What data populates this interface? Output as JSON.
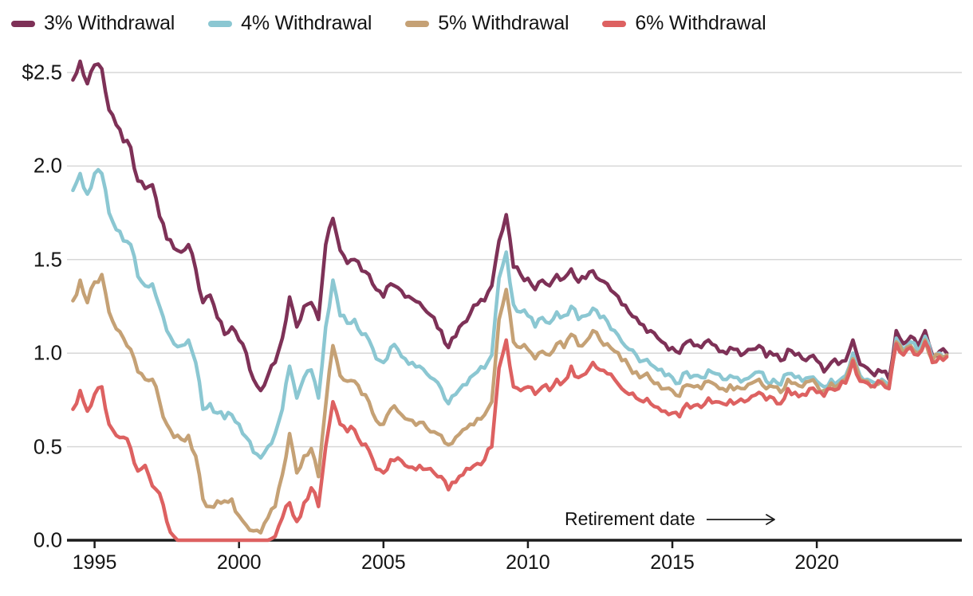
{
  "colors": {
    "background": "#ffffff",
    "grid": "#d7d7d7",
    "axis": "#1c1c1c",
    "text": "#141414"
  },
  "annotation": {
    "text": "Retirement date"
  },
  "chart_data": {
    "type": "line",
    "title": "",
    "xlabel": "Retirement date",
    "ylabel": "",
    "grid": true,
    "legend_position": "top-left",
    "x_range": [
      1994.1,
      2024.8
    ],
    "y_range": [
      0,
      2.5
    ],
    "x_ticks": [
      1995,
      2000,
      2005,
      2010,
      2015,
      2020
    ],
    "x_tick_labels": [
      "1995",
      "2000",
      "2005",
      "2010",
      "2015",
      "2020"
    ],
    "y_ticks": [
      0,
      0.5,
      1.0,
      1.5,
      2.0,
      2.5
    ],
    "y_tick_labels": [
      "0.0",
      "0.5",
      "1.0",
      "1.5",
      "2.0",
      "$2.5"
    ],
    "x": [
      1994.25,
      1994.5,
      1994.75,
      1995.0,
      1995.25,
      1995.5,
      1995.75,
      1996.0,
      1996.25,
      1996.5,
      1996.75,
      1997.0,
      1997.25,
      1997.5,
      1997.75,
      1998.0,
      1998.25,
      1998.5,
      1998.75,
      1999.0,
      1999.25,
      1999.5,
      1999.75,
      2000.0,
      2000.25,
      2000.5,
      2000.75,
      2001.0,
      2001.25,
      2001.5,
      2001.75,
      2002.0,
      2002.25,
      2002.5,
      2002.75,
      2003.0,
      2003.25,
      2003.5,
      2003.75,
      2004.0,
      2004.25,
      2004.5,
      2004.75,
      2005.0,
      2005.25,
      2005.5,
      2005.75,
      2006.0,
      2006.25,
      2006.5,
      2006.75,
      2007.0,
      2007.25,
      2007.5,
      2007.75,
      2008.0,
      2008.25,
      2008.5,
      2008.75,
      2009.0,
      2009.25,
      2009.5,
      2009.75,
      2010.0,
      2010.25,
      2010.5,
      2010.75,
      2011.0,
      2011.25,
      2011.5,
      2011.75,
      2012.0,
      2012.25,
      2012.5,
      2012.75,
      2013.0,
      2013.25,
      2013.5,
      2013.75,
      2014.0,
      2014.25,
      2014.5,
      2014.75,
      2015.0,
      2015.25,
      2015.5,
      2015.75,
      2016.0,
      2016.25,
      2016.5,
      2016.75,
      2017.0,
      2017.25,
      2017.5,
      2017.75,
      2018.0,
      2018.25,
      2018.5,
      2018.75,
      2019.0,
      2019.25,
      2019.5,
      2019.75,
      2020.0,
      2020.25,
      2020.5,
      2020.75,
      2021.0,
      2021.25,
      2021.5,
      2021.75,
      2022.0,
      2022.25,
      2022.5,
      2022.75,
      2023.0,
      2023.25,
      2023.5,
      2023.75,
      2024.0,
      2024.25,
      2024.5
    ],
    "series": [
      {
        "name": "3% Withdrawal",
        "color": "#7e3157",
        "values": [
          2.46,
          2.56,
          2.44,
          2.54,
          2.52,
          2.3,
          2.22,
          2.13,
          2.1,
          1.92,
          1.88,
          1.9,
          1.73,
          1.61,
          1.56,
          1.54,
          1.58,
          1.45,
          1.27,
          1.31,
          1.19,
          1.1,
          1.14,
          1.07,
          1.0,
          0.86,
          0.8,
          0.88,
          0.95,
          1.08,
          1.3,
          1.14,
          1.25,
          1.27,
          1.18,
          1.58,
          1.72,
          1.55,
          1.48,
          1.5,
          1.44,
          1.42,
          1.34,
          1.3,
          1.37,
          1.35,
          1.3,
          1.29,
          1.27,
          1.22,
          1.19,
          1.12,
          1.03,
          1.09,
          1.16,
          1.21,
          1.26,
          1.28,
          1.36,
          1.6,
          1.74,
          1.46,
          1.42,
          1.4,
          1.34,
          1.39,
          1.36,
          1.42,
          1.4,
          1.45,
          1.38,
          1.4,
          1.44,
          1.39,
          1.37,
          1.32,
          1.26,
          1.22,
          1.19,
          1.15,
          1.12,
          1.08,
          1.05,
          1.03,
          1.0,
          1.06,
          1.04,
          1.03,
          1.07,
          1.04,
          1.01,
          1.03,
          1.02,
          1.0,
          1.02,
          1.04,
          0.98,
          0.99,
          0.96,
          1.02,
          0.99,
          0.97,
          0.98,
          0.96,
          0.9,
          0.95,
          0.94,
          0.96,
          1.07,
          0.94,
          0.92,
          0.88,
          0.9,
          0.86,
          1.12,
          1.05,
          1.09,
          1.04,
          1.12,
          0.99,
          1.01,
          1.0
        ]
      },
      {
        "name": "4% Withdrawal",
        "color": "#8bc7d2",
        "values": [
          1.87,
          1.96,
          1.85,
          1.96,
          1.96,
          1.75,
          1.66,
          1.6,
          1.58,
          1.41,
          1.36,
          1.37,
          1.25,
          1.12,
          1.05,
          1.04,
          1.07,
          0.95,
          0.7,
          0.73,
          0.68,
          0.65,
          0.67,
          0.62,
          0.55,
          0.47,
          0.44,
          0.5,
          0.57,
          0.7,
          0.93,
          0.76,
          0.87,
          0.91,
          0.76,
          1.14,
          1.39,
          1.2,
          1.16,
          1.18,
          1.1,
          1.07,
          0.97,
          0.95,
          1.03,
          1.02,
          0.97,
          0.95,
          0.93,
          0.89,
          0.86,
          0.81,
          0.73,
          0.78,
          0.83,
          0.87,
          0.9,
          0.92,
          0.99,
          1.4,
          1.54,
          1.26,
          1.22,
          1.2,
          1.14,
          1.19,
          1.16,
          1.22,
          1.2,
          1.25,
          1.18,
          1.2,
          1.24,
          1.19,
          1.17,
          1.12,
          1.06,
          1.02,
          0.99,
          0.96,
          0.94,
          0.91,
          0.88,
          0.87,
          0.84,
          0.9,
          0.88,
          0.87,
          0.91,
          0.89,
          0.86,
          0.88,
          0.87,
          0.86,
          0.88,
          0.9,
          0.85,
          0.86,
          0.83,
          0.89,
          0.87,
          0.85,
          0.87,
          0.85,
          0.82,
          0.86,
          0.85,
          0.88,
          1.0,
          0.88,
          0.86,
          0.84,
          0.86,
          0.83,
          1.08,
          1.02,
          1.06,
          1.01,
          1.09,
          0.97,
          1.0,
          0.99
        ]
      },
      {
        "name": "5% Withdrawal",
        "color": "#c5a175",
        "values": [
          1.28,
          1.39,
          1.27,
          1.38,
          1.42,
          1.22,
          1.13,
          1.08,
          1.02,
          0.9,
          0.86,
          0.86,
          0.74,
          0.62,
          0.55,
          0.54,
          0.56,
          0.45,
          0.22,
          0.18,
          0.21,
          0.21,
          0.22,
          0.13,
          0.08,
          0.05,
          0.04,
          0.12,
          0.18,
          0.35,
          0.57,
          0.36,
          0.45,
          0.49,
          0.34,
          0.72,
          1.04,
          0.88,
          0.85,
          0.85,
          0.78,
          0.74,
          0.64,
          0.62,
          0.7,
          0.69,
          0.65,
          0.64,
          0.63,
          0.6,
          0.58,
          0.56,
          0.51,
          0.55,
          0.59,
          0.62,
          0.65,
          0.67,
          0.74,
          1.18,
          1.34,
          1.06,
          1.03,
          1.02,
          0.97,
          1.01,
          0.99,
          1.05,
          1.03,
          1.1,
          1.04,
          1.06,
          1.12,
          1.07,
          1.05,
          1.01,
          0.96,
          0.93,
          0.9,
          0.88,
          0.86,
          0.84,
          0.81,
          0.8,
          0.77,
          0.83,
          0.82,
          0.81,
          0.85,
          0.83,
          0.81,
          0.83,
          0.82,
          0.81,
          0.84,
          0.86,
          0.81,
          0.82,
          0.79,
          0.86,
          0.84,
          0.82,
          0.85,
          0.83,
          0.8,
          0.84,
          0.83,
          0.86,
          0.97,
          0.86,
          0.85,
          0.83,
          0.85,
          0.82,
          1.06,
          1.0,
          1.04,
          1.0,
          1.07,
          0.96,
          0.99,
          0.99
        ]
      },
      {
        "name": "6% Withdrawal",
        "color": "#dd6161",
        "values": [
          0.7,
          0.8,
          0.69,
          0.78,
          0.82,
          0.62,
          0.56,
          0.55,
          0.49,
          0.37,
          0.4,
          0.29,
          0.25,
          0.1,
          0.02,
          0.0,
          0.0,
          0.0,
          0.0,
          0.0,
          0.0,
          0.0,
          0.0,
          0.0,
          0.0,
          0.0,
          0.0,
          0.0,
          0.02,
          0.12,
          0.2,
          0.1,
          0.2,
          0.28,
          0.18,
          0.5,
          0.74,
          0.62,
          0.58,
          0.59,
          0.51,
          0.48,
          0.38,
          0.36,
          0.43,
          0.44,
          0.4,
          0.39,
          0.4,
          0.38,
          0.36,
          0.34,
          0.27,
          0.31,
          0.35,
          0.38,
          0.41,
          0.43,
          0.5,
          0.92,
          1.07,
          0.82,
          0.8,
          0.82,
          0.78,
          0.82,
          0.8,
          0.86,
          0.85,
          0.93,
          0.87,
          0.89,
          0.95,
          0.91,
          0.89,
          0.86,
          0.81,
          0.78,
          0.76,
          0.74,
          0.73,
          0.71,
          0.69,
          0.68,
          0.66,
          0.73,
          0.72,
          0.71,
          0.76,
          0.74,
          0.73,
          0.75,
          0.74,
          0.74,
          0.77,
          0.79,
          0.75,
          0.76,
          0.73,
          0.81,
          0.79,
          0.78,
          0.81,
          0.79,
          0.77,
          0.81,
          0.81,
          0.84,
          0.96,
          0.85,
          0.84,
          0.82,
          0.84,
          0.81,
          1.05,
          0.99,
          1.03,
          0.99,
          1.06,
          0.95,
          0.98,
          0.98
        ]
      }
    ]
  }
}
